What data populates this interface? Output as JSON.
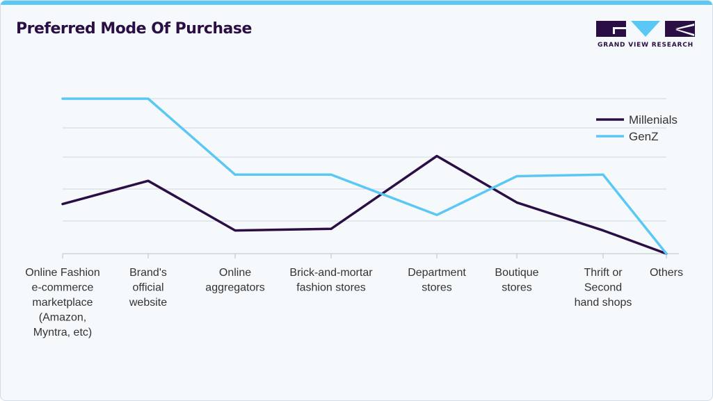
{
  "header": {
    "title": "Preferred Mode Of Purchase",
    "logo_text": "GRAND VIEW RESEARCH"
  },
  "colors": {
    "accent": "#5bc8f4",
    "brand": "#2b0e44"
  },
  "chart_data": {
    "type": "line",
    "title": "Preferred Mode Of Purchase",
    "xlabel": "",
    "ylabel": "",
    "ylim": [
      0,
      100
    ],
    "grid": true,
    "legend_position": "top-right",
    "categories": [
      "Online Fashion e-commerce marketplace (Amazon, Myntra, etc)",
      "Brand's official website",
      "Online aggregators",
      "Brick-and-mortar fashion stores",
      "Department stores",
      "Boutique stores",
      "Thrift or Second hand shops",
      "Others"
    ],
    "category_lines": [
      [
        "Online Fashion",
        "e-commerce",
        "marketplace",
        "(Amazon,",
        "Myntra, etc)"
      ],
      [
        "Brand's",
        "official",
        "website"
      ],
      [
        "Online",
        "aggregators"
      ],
      [
        "Brick-and-mortar",
        "fashion stores"
      ],
      [
        "Department",
        "stores"
      ],
      [
        "Boutique",
        "stores"
      ],
      [
        "Thrift or",
        "Second",
        "hand shops"
      ],
      [
        "Others"
      ]
    ],
    "series": [
      {
        "name": "Millenials",
        "color": "#2b0e44",
        "values": [
          32,
          47,
          15,
          16,
          63,
          33,
          15,
          0
        ]
      },
      {
        "name": "GenZ",
        "color": "#5bc8f4",
        "values": [
          100,
          100,
          51,
          51,
          25,
          50,
          51,
          0
        ]
      }
    ]
  }
}
